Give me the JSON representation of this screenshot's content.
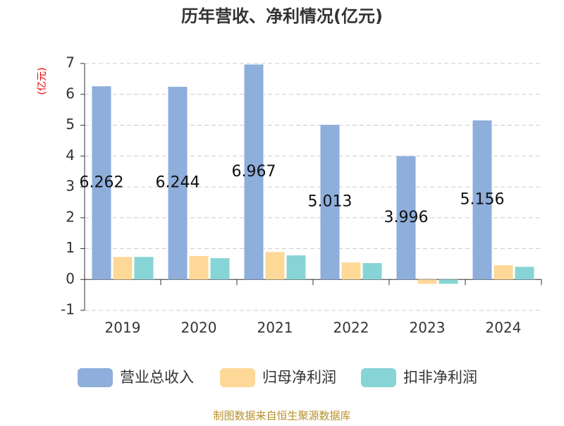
{
  "chart_data": {
    "type": "bar",
    "title": "历年营收、净利情况(亿元)",
    "y_label": "(亿元)",
    "source": "制图数据来自恒生聚源数据库",
    "categories": [
      "2019",
      "2020",
      "2021",
      "2022",
      "2023",
      "2024"
    ],
    "series": [
      {
        "name": "营业总收入",
        "color": "#8eaedb",
        "values": [
          6.262,
          6.244,
          6.967,
          5.013,
          3.996,
          5.156
        ],
        "data_labels": true
      },
      {
        "name": "归母净利润",
        "color": "#fdd897",
        "values": [
          0.73,
          0.76,
          0.89,
          0.55,
          -0.14,
          0.46
        ]
      },
      {
        "name": "扣非净利润",
        "color": "#87d4d6",
        "values": [
          0.73,
          0.69,
          0.78,
          0.53,
          -0.14,
          0.41
        ]
      }
    ],
    "ylim": [
      -1,
      7
    ],
    "yticks": [
      -1,
      0,
      1,
      2,
      3,
      4,
      5,
      6,
      7
    ],
    "grid": true,
    "legend": "bottom"
  }
}
